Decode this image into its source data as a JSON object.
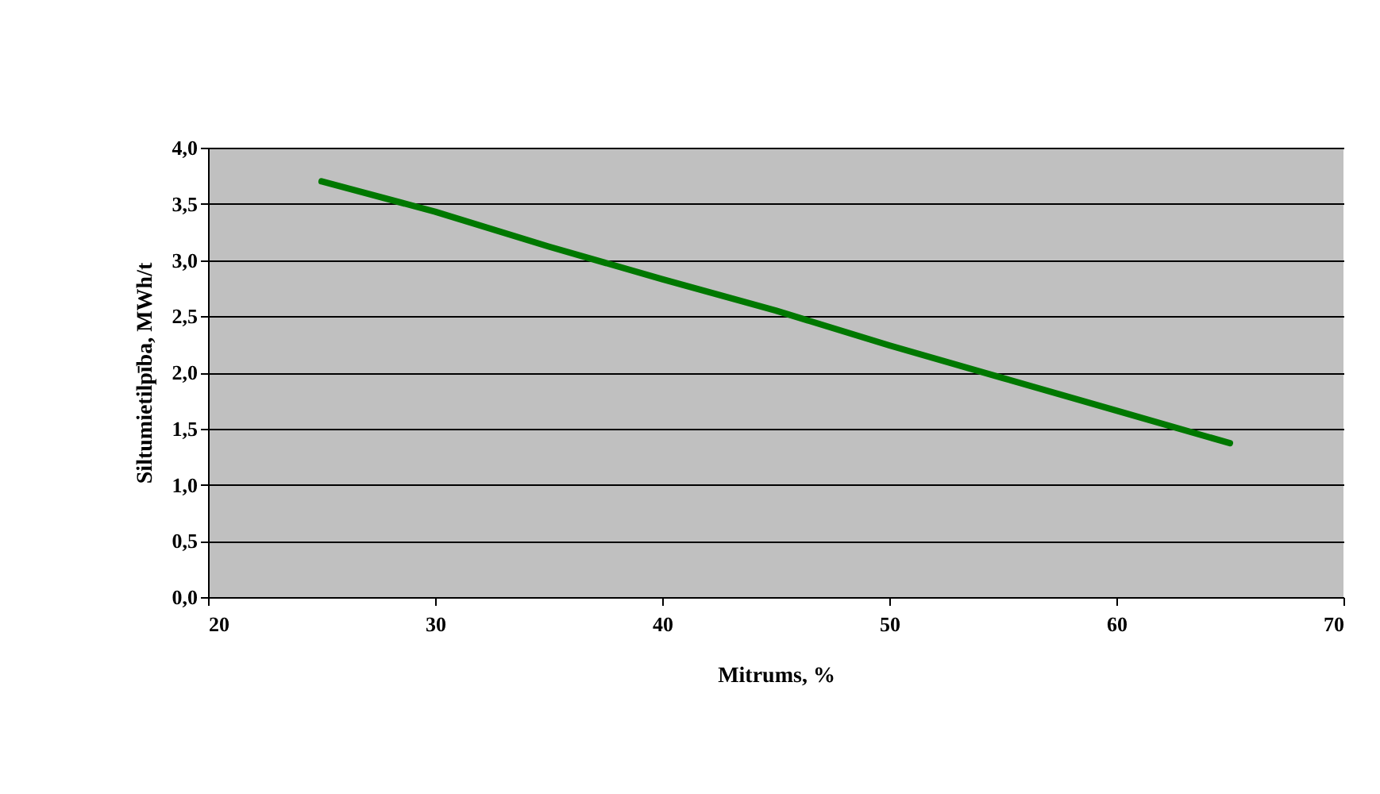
{
  "chart_data": {
    "type": "line",
    "xlabel": "Mitrums, %",
    "ylabel": "Siltumietilpība, MWh/t",
    "x": [
      25,
      30,
      35,
      40,
      45,
      50,
      55,
      60,
      65
    ],
    "series": [
      {
        "color": "#007800",
        "values": [
          3.7,
          3.43,
          3.12,
          2.83,
          2.55,
          2.24,
          1.95,
          1.66,
          1.37
        ]
      }
    ],
    "xlim": [
      20,
      70
    ],
    "xticks": [
      20,
      30,
      40,
      50,
      60,
      70
    ],
    "ylim": [
      0,
      4
    ],
    "yticks": [
      {
        "value": 0,
        "label": "0,0"
      },
      {
        "value": 0.5,
        "label": "0,5"
      },
      {
        "value": 1,
        "label": "1,0"
      },
      {
        "value": 1.5,
        "label": "1,5"
      },
      {
        "value": 2,
        "label": "2,0"
      },
      {
        "value": 2.5,
        "label": "2,5"
      },
      {
        "value": 3,
        "label": "3,0"
      },
      {
        "value": 3.5,
        "label": "3,5"
      },
      {
        "value": 4,
        "label": "4,0"
      }
    ],
    "grid": "y",
    "marker": "none",
    "line_style": "solid"
  }
}
